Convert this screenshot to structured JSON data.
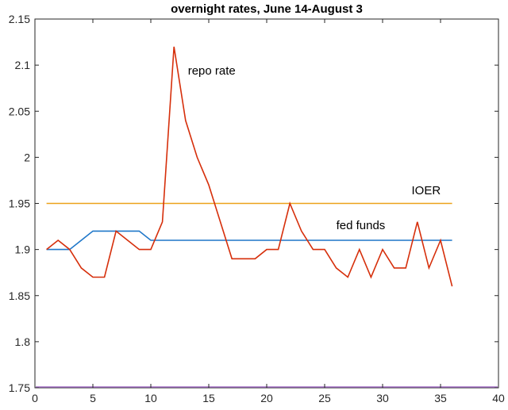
{
  "chart_data": {
    "type": "line",
    "title": "overnight rates, June 14-August 3",
    "xlabel": "",
    "ylabel": "",
    "xlim": [
      0,
      40
    ],
    "ylim": [
      1.75,
      2.15
    ],
    "xticks": [
      0,
      5,
      10,
      15,
      20,
      25,
      30,
      35,
      40
    ],
    "yticks": [
      1.75,
      1.8,
      1.85,
      1.9,
      1.95,
      2,
      2.05,
      2.1,
      2.15
    ],
    "xtick_labels": [
      "0",
      "5",
      "10",
      "15",
      "20",
      "25",
      "30",
      "35",
      "40"
    ],
    "ytick_labels": [
      "1.75",
      "1.8",
      "1.85",
      "1.9",
      "1.95",
      "2",
      "2.05",
      "2.1",
      "2.15"
    ],
    "grid": false,
    "series": [
      {
        "name": "repo rate",
        "color": "#d62f0b",
        "x": [
          1,
          2,
          3,
          4,
          5,
          6,
          7,
          8,
          9,
          10,
          11,
          12,
          13,
          14,
          15,
          16,
          17,
          18,
          19,
          20,
          21,
          22,
          23,
          24,
          25,
          26,
          27,
          28,
          29,
          30,
          31,
          32,
          33,
          34,
          35,
          36
        ],
        "y": [
          1.9,
          1.91,
          1.9,
          1.88,
          1.87,
          1.87,
          1.92,
          1.91,
          1.9,
          1.9,
          1.93,
          2.12,
          2.04,
          2.0,
          1.97,
          1.93,
          1.89,
          1.89,
          1.89,
          1.9,
          1.9,
          1.95,
          1.92,
          1.9,
          1.9,
          1.88,
          1.87,
          1.9,
          1.87,
          1.9,
          1.88,
          1.88,
          1.93,
          1.88,
          1.91,
          1.86
        ]
      },
      {
        "name": "fed funds",
        "color": "#1f77c9",
        "x": [
          1,
          2,
          3,
          4,
          5,
          6,
          7,
          8,
          9,
          10,
          11,
          12,
          13,
          14,
          15,
          16,
          17,
          18,
          19,
          20,
          21,
          22,
          23,
          24,
          25,
          26,
          27,
          28,
          29,
          30,
          31,
          32,
          33,
          34,
          35,
          36
        ],
        "y": [
          1.9,
          1.9,
          1.9,
          1.91,
          1.92,
          1.92,
          1.92,
          1.92,
          1.92,
          1.91,
          1.91,
          1.91,
          1.91,
          1.91,
          1.91,
          1.91,
          1.91,
          1.91,
          1.91,
          1.91,
          1.91,
          1.91,
          1.91,
          1.91,
          1.91,
          1.91,
          1.91,
          1.91,
          1.91,
          1.91,
          1.91,
          1.91,
          1.91,
          1.91,
          1.91,
          1.91
        ]
      },
      {
        "name": "IOER",
        "color": "#eda21b",
        "x": [
          1,
          36
        ],
        "y": [
          1.95,
          1.95
        ]
      }
    ],
    "annotations": [
      {
        "text": "repo rate",
        "x": 13.2,
        "y": 2.09
      },
      {
        "text": "IOER",
        "x": 32.5,
        "y": 1.96
      },
      {
        "text": "fed funds",
        "x": 26.0,
        "y": 1.922
      }
    ]
  }
}
